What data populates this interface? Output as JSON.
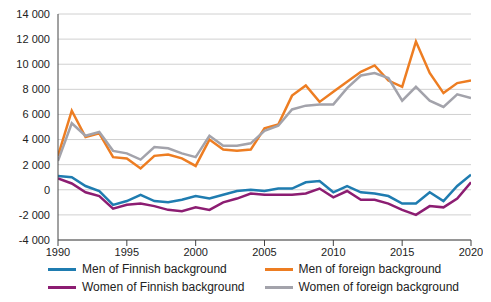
{
  "chart_data": {
    "type": "line",
    "x": [
      1990,
      1991,
      1992,
      1993,
      1994,
      1995,
      1996,
      1997,
      1998,
      1999,
      2000,
      2001,
      2002,
      2003,
      2004,
      2005,
      2006,
      2007,
      2008,
      2009,
      2010,
      2011,
      2012,
      2013,
      2014,
      2015,
      2016,
      2017,
      2018,
      2019,
      2020
    ],
    "series": [
      {
        "name": "Men of Finnish background",
        "color": "#1f7cb0",
        "values": [
          1100,
          1000,
          300,
          -100,
          -1200,
          -900,
          -400,
          -900,
          -1000,
          -800,
          -500,
          -700,
          -400,
          -100,
          0,
          -100,
          100,
          100,
          600,
          700,
          -200,
          300,
          -200,
          -300,
          -500,
          -1100,
          -1100,
          -200,
          -900,
          300,
          1200
        ]
      },
      {
        "name": "Men of foreign background",
        "color": "#ed7d22",
        "values": [
          2700,
          6300,
          4200,
          4500,
          2600,
          2500,
          1700,
          2700,
          2800,
          2500,
          1900,
          4000,
          3200,
          3100,
          3200,
          4900,
          5200,
          7500,
          8300,
          7000,
          7800,
          8600,
          9400,
          9900,
          8700,
          8200,
          11800,
          9300,
          7700,
          8500,
          8700
        ]
      },
      {
        "name": "Women of Finnish background",
        "color": "#8c1d72",
        "values": [
          900,
          500,
          -200,
          -500,
          -1500,
          -1200,
          -1100,
          -1300,
          -1600,
          -1700,
          -1400,
          -1600,
          -1000,
          -700,
          -300,
          -400,
          -400,
          -400,
          -300,
          100,
          -600,
          -100,
          -800,
          -800,
          -1100,
          -1600,
          -2000,
          -1300,
          -1400,
          -700,
          600
        ]
      },
      {
        "name": "Women of foreign background",
        "color": "#a3a3ab",
        "values": [
          2300,
          5300,
          4300,
          4600,
          3100,
          2900,
          2400,
          3400,
          3300,
          2900,
          2600,
          4300,
          3500,
          3500,
          3700,
          4700,
          5100,
          6400,
          6700,
          6800,
          6800,
          8100,
          9100,
          9300,
          8900,
          7100,
          8200,
          7100,
          6600,
          7600,
          7300
        ]
      }
    ],
    "xlim": [
      1990,
      2020
    ],
    "xticks": [
      1990,
      1995,
      2000,
      2005,
      2010,
      2015,
      2020
    ],
    "ylim": [
      -4000,
      14000
    ],
    "yticks": [
      {
        "value": -4000,
        "label": "-4 000"
      },
      {
        "value": -2000,
        "label": "-2 000"
      },
      0,
      {
        "value": 2000,
        "label": "2 000"
      },
      {
        "value": 4000,
        "label": "4 000"
      },
      {
        "value": 6000,
        "label": "6 000"
      },
      {
        "value": 8000,
        "label": "8 000"
      },
      {
        "value": 10000,
        "label": "10 000"
      },
      {
        "value": 12000,
        "label": "12 000"
      },
      {
        "value": 14000,
        "label": "14 000"
      }
    ],
    "grid": true,
    "legend": "bottom"
  }
}
